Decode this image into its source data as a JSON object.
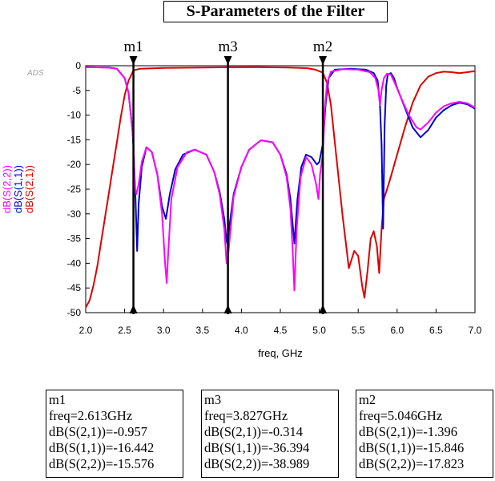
{
  "watermark": "ADS",
  "chart_data": {
    "type": "line",
    "title": "S-Parameters of the Filter",
    "xlabel": "freq, GHz",
    "xlim": [
      2.0,
      7.0
    ],
    "ylim": [
      -50,
      0
    ],
    "xticks": [
      "2.0",
      "2.5",
      "3.0",
      "3.5",
      "4.0",
      "4.5",
      "5.0",
      "5.5",
      "6.0",
      "6.5",
      "7.0"
    ],
    "yticks": [
      "0",
      "-5",
      "-10",
      "-15",
      "-20",
      "-25",
      "-30",
      "-35",
      "-40",
      "-45",
      "-50"
    ],
    "ylabels": [
      {
        "text": "dB(S(2,2))",
        "color": "#ff00ff"
      },
      {
        "text": "dB(S(1,1))",
        "color": "#0000cc"
      },
      {
        "text": "dB(S(2,1))",
        "color": "#dd0000"
      }
    ],
    "series": [
      {
        "name": "dB(S(2,1))",
        "color": "#dd0000",
        "points": [
          [
            2.0,
            -49.0
          ],
          [
            2.05,
            -47.5
          ],
          [
            2.1,
            -44.5
          ],
          [
            2.15,
            -40.5
          ],
          [
            2.2,
            -35.5
          ],
          [
            2.25,
            -30.5
          ],
          [
            2.3,
            -25.5
          ],
          [
            2.35,
            -20.5
          ],
          [
            2.4,
            -15.5
          ],
          [
            2.45,
            -10.5
          ],
          [
            2.5,
            -6.0
          ],
          [
            2.55,
            -3.0
          ],
          [
            2.613,
            -0.957
          ],
          [
            2.7,
            -0.6
          ],
          [
            3.0,
            -0.45
          ],
          [
            3.5,
            -0.35
          ],
          [
            3.827,
            -0.314
          ],
          [
            4.2,
            -0.3
          ],
          [
            4.6,
            -0.35
          ],
          [
            4.85,
            -0.5
          ],
          [
            4.95,
            -0.8
          ],
          [
            5.0,
            -1.1
          ],
          [
            5.046,
            -1.396
          ],
          [
            5.1,
            -3.5
          ],
          [
            5.15,
            -8.0
          ],
          [
            5.2,
            -15.5
          ],
          [
            5.25,
            -23.0
          ],
          [
            5.3,
            -30.5
          ],
          [
            5.35,
            -37.0
          ],
          [
            5.38,
            -41.0
          ],
          [
            5.42,
            -39.0
          ],
          [
            5.45,
            -37.5
          ],
          [
            5.5,
            -38.5
          ],
          [
            5.55,
            -44.5
          ],
          [
            5.58,
            -47.0
          ],
          [
            5.62,
            -41.5
          ],
          [
            5.66,
            -35.0
          ],
          [
            5.7,
            -33.5
          ],
          [
            5.74,
            -36.5
          ],
          [
            5.77,
            -42.0
          ],
          [
            5.8,
            -33.0
          ],
          [
            5.83,
            -27.0
          ],
          [
            5.86,
            -25.5
          ],
          [
            5.9,
            -23.5
          ],
          [
            6.0,
            -18.0
          ],
          [
            6.1,
            -12.5
          ],
          [
            6.2,
            -7.5
          ],
          [
            6.3,
            -4.0
          ],
          [
            6.4,
            -2.2
          ],
          [
            6.5,
            -1.5
          ],
          [
            6.6,
            -1.2
          ],
          [
            6.7,
            -1.3
          ],
          [
            6.8,
            -1.5
          ],
          [
            6.9,
            -1.3
          ],
          [
            7.0,
            -1.1
          ]
        ]
      },
      {
        "name": "dB(S(1,1))",
        "color": "#0000cc",
        "points": [
          [
            2.0,
            -0.3
          ],
          [
            2.3,
            -0.35
          ],
          [
            2.4,
            -0.6
          ],
          [
            2.5,
            -2.5
          ],
          [
            2.55,
            -5.5
          ],
          [
            2.6,
            -13.0
          ],
          [
            2.613,
            -16.442
          ],
          [
            2.64,
            -27.0
          ],
          [
            2.66,
            -37.5
          ],
          [
            2.68,
            -28.0
          ],
          [
            2.72,
            -20.5
          ],
          [
            2.78,
            -16.5
          ],
          [
            2.85,
            -17.5
          ],
          [
            2.92,
            -22.0
          ],
          [
            2.98,
            -28.5
          ],
          [
            3.03,
            -31.0
          ],
          [
            3.08,
            -26.0
          ],
          [
            3.15,
            -21.0
          ],
          [
            3.25,
            -18.0
          ],
          [
            3.4,
            -17.0
          ],
          [
            3.55,
            -18.0
          ],
          [
            3.65,
            -21.5
          ],
          [
            3.72,
            -25.5
          ],
          [
            3.78,
            -31.0
          ],
          [
            3.81,
            -35.5
          ],
          [
            3.827,
            -36.394
          ],
          [
            3.85,
            -32.0
          ],
          [
            3.9,
            -26.0
          ],
          [
            4.0,
            -20.5
          ],
          [
            4.1,
            -17.0
          ],
          [
            4.25,
            -15.1
          ],
          [
            4.4,
            -15.5
          ],
          [
            4.5,
            -18.0
          ],
          [
            4.58,
            -22.0
          ],
          [
            4.63,
            -27.0
          ],
          [
            4.68,
            -36.0
          ],
          [
            4.72,
            -27.0
          ],
          [
            4.77,
            -20.5
          ],
          [
            4.83,
            -18.0
          ],
          [
            4.9,
            -18.5
          ],
          [
            4.97,
            -20.0
          ],
          [
            5.0,
            -19.5
          ],
          [
            5.046,
            -15.846
          ],
          [
            5.08,
            -8.0
          ],
          [
            5.12,
            -2.5
          ],
          [
            5.2,
            -0.8
          ],
          [
            5.4,
            -0.6
          ],
          [
            5.6,
            -0.8
          ],
          [
            5.7,
            -1.5
          ],
          [
            5.75,
            -3.0
          ],
          [
            5.78,
            -8.0
          ],
          [
            5.8,
            -16.0
          ],
          [
            5.82,
            -33.0
          ],
          [
            5.84,
            -12.0
          ],
          [
            5.86,
            -4.0
          ],
          [
            5.88,
            -1.8
          ],
          [
            5.92,
            -1.5
          ],
          [
            5.96,
            -2.5
          ],
          [
            6.0,
            -4.5
          ],
          [
            6.1,
            -8.5
          ],
          [
            6.2,
            -12.5
          ],
          [
            6.3,
            -14.5
          ],
          [
            6.4,
            -13.0
          ],
          [
            6.5,
            -10.5
          ],
          [
            6.6,
            -9.0
          ],
          [
            6.7,
            -8.0
          ],
          [
            6.8,
            -7.5
          ],
          [
            6.9,
            -7.8
          ],
          [
            7.0,
            -8.7
          ]
        ]
      },
      {
        "name": "dB(S(2,2))",
        "color": "#ff00ff",
        "points": [
          [
            2.0,
            -0.3
          ],
          [
            2.3,
            -0.35
          ],
          [
            2.4,
            -0.6
          ],
          [
            2.5,
            -2.5
          ],
          [
            2.55,
            -5.5
          ],
          [
            2.6,
            -13.0
          ],
          [
            2.613,
            -15.576
          ],
          [
            2.63,
            -24.5
          ],
          [
            2.65,
            -26.0
          ],
          [
            2.68,
            -24.0
          ],
          [
            2.72,
            -19.5
          ],
          [
            2.78,
            -16.5
          ],
          [
            2.85,
            -17.5
          ],
          [
            2.92,
            -22.0
          ],
          [
            2.98,
            -30.0
          ],
          [
            3.02,
            -40.0
          ],
          [
            3.04,
            -44.0
          ],
          [
            3.06,
            -38.0
          ],
          [
            3.1,
            -27.0
          ],
          [
            3.18,
            -20.5
          ],
          [
            3.3,
            -17.5
          ],
          [
            3.4,
            -17.0
          ],
          [
            3.55,
            -18.0
          ],
          [
            3.65,
            -21.5
          ],
          [
            3.72,
            -26.0
          ],
          [
            3.78,
            -33.0
          ],
          [
            3.81,
            -40.0
          ],
          [
            3.827,
            -38.989
          ],
          [
            3.85,
            -35.0
          ],
          [
            3.9,
            -26.5
          ],
          [
            4.0,
            -20.5
          ],
          [
            4.1,
            -17.0
          ],
          [
            4.25,
            -15.1
          ],
          [
            4.4,
            -15.5
          ],
          [
            4.5,
            -18.0
          ],
          [
            4.58,
            -22.5
          ],
          [
            4.63,
            -29.0
          ],
          [
            4.66,
            -38.0
          ],
          [
            4.68,
            -45.5
          ],
          [
            4.71,
            -33.0
          ],
          [
            4.76,
            -22.5
          ],
          [
            4.83,
            -18.5
          ],
          [
            4.9,
            -20.0
          ],
          [
            4.96,
            -24.0
          ],
          [
            4.99,
            -27.0
          ],
          [
            5.01,
            -22.0
          ],
          [
            5.046,
            -17.823
          ],
          [
            5.07,
            -9.0
          ],
          [
            5.1,
            -3.5
          ],
          [
            5.15,
            -1.2
          ],
          [
            5.3,
            -0.7
          ],
          [
            5.5,
            -0.8
          ],
          [
            5.65,
            -1.3
          ],
          [
            5.72,
            -2.5
          ],
          [
            5.76,
            -5.0
          ],
          [
            5.78,
            -8.0
          ],
          [
            5.8,
            -5.0
          ],
          [
            5.83,
            -2.5
          ],
          [
            5.87,
            -1.6
          ],
          [
            5.92,
            -1.8
          ],
          [
            5.97,
            -3.5
          ],
          [
            6.05,
            -6.5
          ],
          [
            6.15,
            -10.0
          ],
          [
            6.25,
            -12.5
          ],
          [
            6.3,
            -12.9
          ],
          [
            6.4,
            -11.5
          ],
          [
            6.5,
            -9.5
          ],
          [
            6.6,
            -8.2
          ],
          [
            6.7,
            -7.6
          ],
          [
            6.8,
            -7.3
          ],
          [
            6.9,
            -7.6
          ],
          [
            7.0,
            -8.5
          ]
        ]
      }
    ],
    "markers": [
      {
        "name": "m1",
        "freq": 2.613,
        "lines": [
          "m1",
          "freq=2.613GHz",
          "dB(S(2,1))=-0.957",
          "dB(S(1,1))=-16.442",
          "dB(S(2,2))=-15.576"
        ]
      },
      {
        "name": "m3",
        "freq": 3.827,
        "lines": [
          "m3",
          "freq=3.827GHz",
          "dB(S(2,1))=-0.314",
          "dB(S(1,1))=-36.394",
          "dB(S(2,2))=-38.989"
        ]
      },
      {
        "name": "m2",
        "freq": 5.046,
        "lines": [
          "m2",
          "freq=5.046GHz",
          "dB(S(2,1))=-1.396",
          "dB(S(1,1))=-15.846",
          "dB(S(2,2))=-17.823"
        ]
      }
    ],
    "grid": false,
    "legend": "none"
  }
}
